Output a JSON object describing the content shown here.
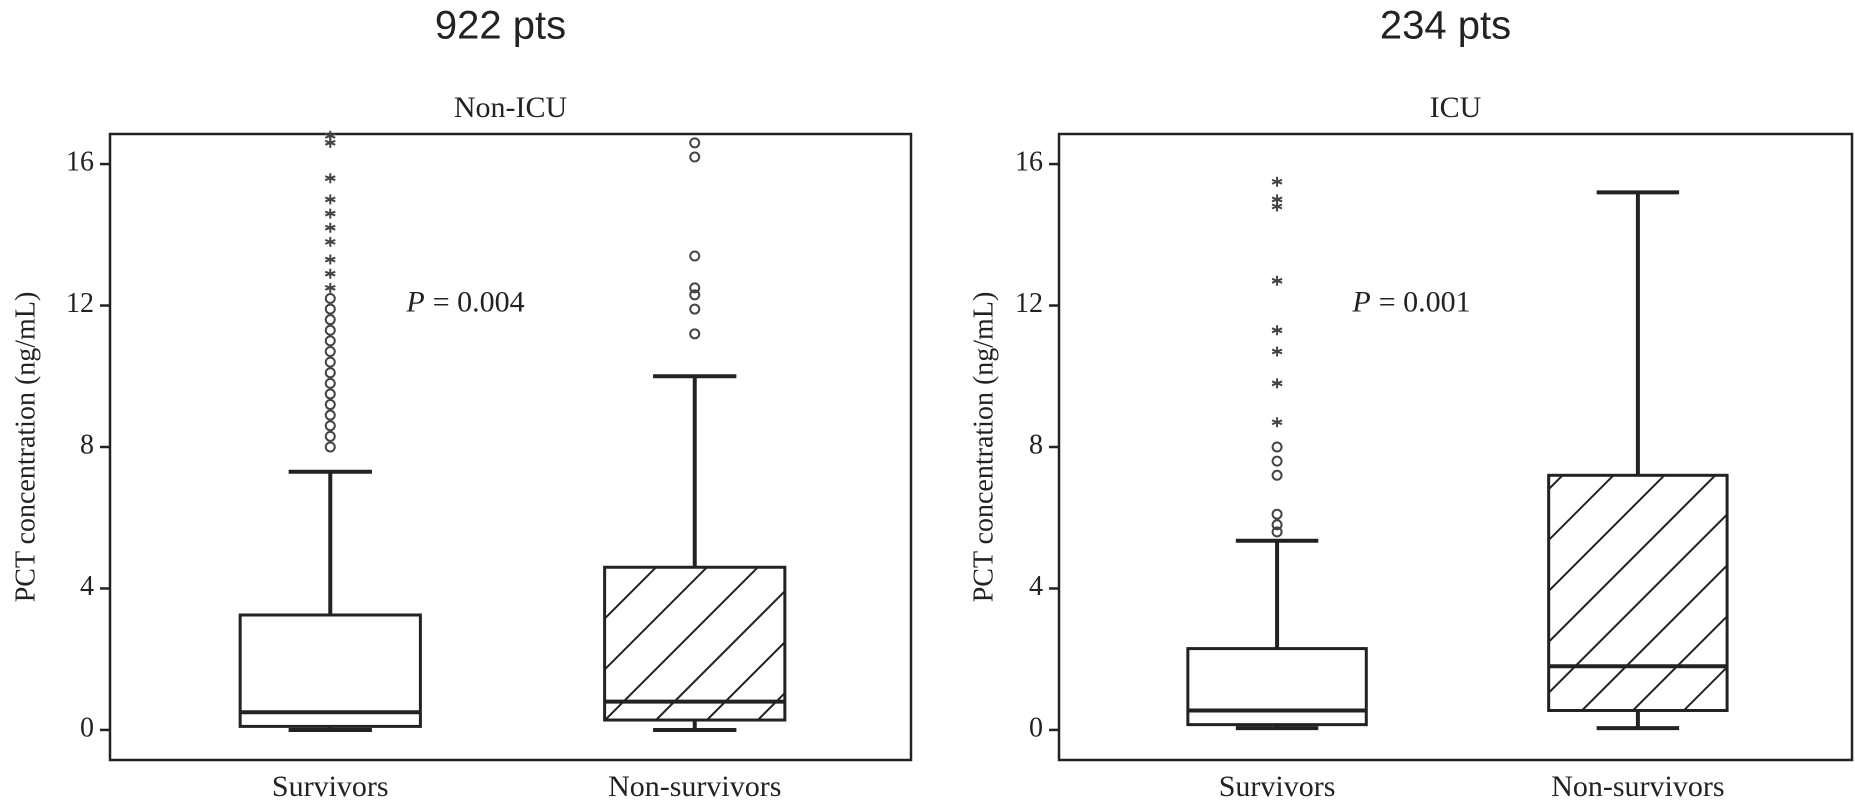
{
  "chart_data": [
    {
      "type": "box",
      "header": "922 pts",
      "title": "Non-ICU",
      "y_label": "PCT concentration (ng/mL)",
      "annotation_symbol": "P",
      "annotation": "= 0.004",
      "categories": [
        "Survivors",
        "Non-survivors"
      ],
      "ylim": [
        -0.85,
        16.85
      ],
      "yticks": [
        0,
        4,
        8,
        12,
        16
      ],
      "color": "#222222",
      "boxes": [
        {
          "min": 0,
          "q1": 0.1,
          "median": 0.5,
          "q3": 3.25,
          "max": 7.3,
          "hatch": false,
          "outliers": [
            8.0,
            8.3,
            8.6,
            8.9,
            9.2,
            9.5,
            9.8,
            10.1,
            10.4,
            10.7,
            11.0,
            11.3,
            11.6,
            11.9,
            12.2
          ],
          "extremes": [
            12.5,
            12.9,
            13.3,
            13.8,
            14.2,
            14.6,
            15.0,
            15.6,
            16.6,
            16.8
          ]
        },
        {
          "min": 0,
          "q1": 0.28,
          "median": 0.8,
          "q3": 4.6,
          "max": 10.0,
          "hatch": true,
          "outliers": [
            11.2,
            11.9,
            12.3,
            12.5,
            13.4,
            16.2,
            16.6
          ],
          "extremes": []
        }
      ]
    },
    {
      "type": "box",
      "header": "234 pts",
      "title": "ICU",
      "y_label": "PCT concentration (ng/mL)",
      "annotation_symbol": "P",
      "annotation": "= 0.001",
      "categories": [
        "Survivors",
        "Non-survivors"
      ],
      "ylim": [
        -0.85,
        16.85
      ],
      "yticks": [
        0,
        4,
        8,
        12,
        16
      ],
      "color": "#222222",
      "boxes": [
        {
          "min": 0.05,
          "q1": 0.15,
          "median": 0.55,
          "q3": 2.3,
          "max": 5.35,
          "hatch": false,
          "outliers": [
            5.6,
            5.8,
            6.1,
            7.2,
            7.6,
            8.0
          ],
          "extremes": [
            8.7,
            9.8,
            10.7,
            11.3,
            12.7,
            14.8,
            15.0,
            15.5
          ]
        },
        {
          "min": 0.05,
          "q1": 0.55,
          "median": 1.8,
          "q3": 7.2,
          "max": 15.2,
          "hatch": true,
          "outliers": [],
          "extremes": []
        }
      ]
    }
  ]
}
